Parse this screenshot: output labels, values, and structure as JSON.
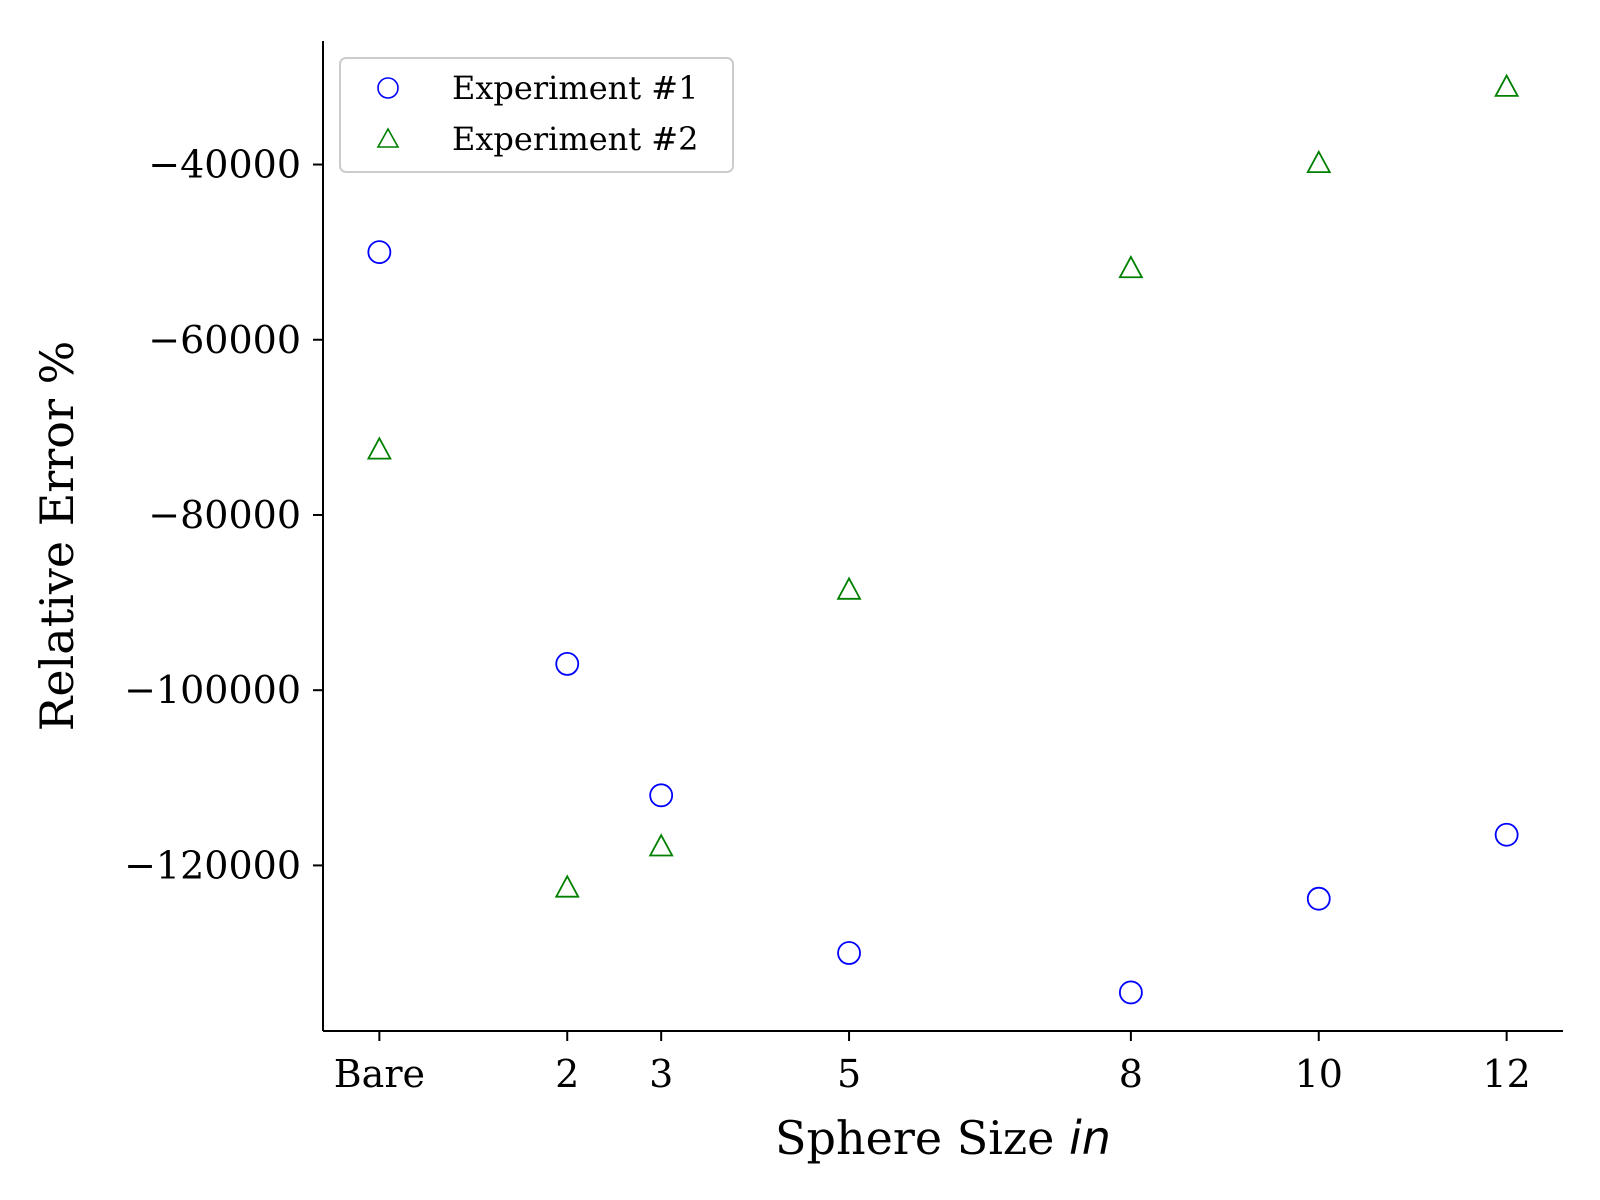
{
  "chart_data": {
    "type": "scatter",
    "xlabel": "Sphere Size ",
    "xlabel_unit": "in",
    "ylabel": "Relative Error %",
    "x_ticks": [
      {
        "value": 0,
        "label": "Bare"
      },
      {
        "value": 2,
        "label": "2"
      },
      {
        "value": 3,
        "label": "3"
      },
      {
        "value": 5,
        "label": "5"
      },
      {
        "value": 8,
        "label": "8"
      },
      {
        "value": 10,
        "label": "10"
      },
      {
        "value": 12,
        "label": "12"
      }
    ],
    "y_ticks": [
      {
        "value": -40000,
        "label": "−40000"
      },
      {
        "value": -60000,
        "label": "−60000"
      },
      {
        "value": -80000,
        "label": "−80000"
      },
      {
        "value": -100000,
        "label": "−100000"
      },
      {
        "value": -120000,
        "label": "−120000"
      }
    ],
    "xlim": [
      -0.6,
      12.6
    ],
    "ylim": [
      -138900,
      -25900
    ],
    "grid": false,
    "legend_position": "top-left",
    "series": [
      {
        "name": "Experiment #1",
        "marker": "circle",
        "color": "#0000ff",
        "points": [
          {
            "x": 0,
            "y": -50000
          },
          {
            "x": 2,
            "y": -97000
          },
          {
            "x": 3,
            "y": -112000
          },
          {
            "x": 5,
            "y": -130000
          },
          {
            "x": 8,
            "y": -134500
          },
          {
            "x": 10,
            "y": -123800
          },
          {
            "x": 12,
            "y": -116500
          }
        ]
      },
      {
        "name": "Experiment #2",
        "marker": "triangle",
        "color": "#008000",
        "points": [
          {
            "x": 0,
            "y": -72500
          },
          {
            "x": 2,
            "y": -122500
          },
          {
            "x": 3,
            "y": -117800
          },
          {
            "x": 5,
            "y": -88500
          },
          {
            "x": 8,
            "y": -51800
          },
          {
            "x": 10,
            "y": -39800
          },
          {
            "x": 12,
            "y": -31100
          }
        ]
      }
    ]
  }
}
